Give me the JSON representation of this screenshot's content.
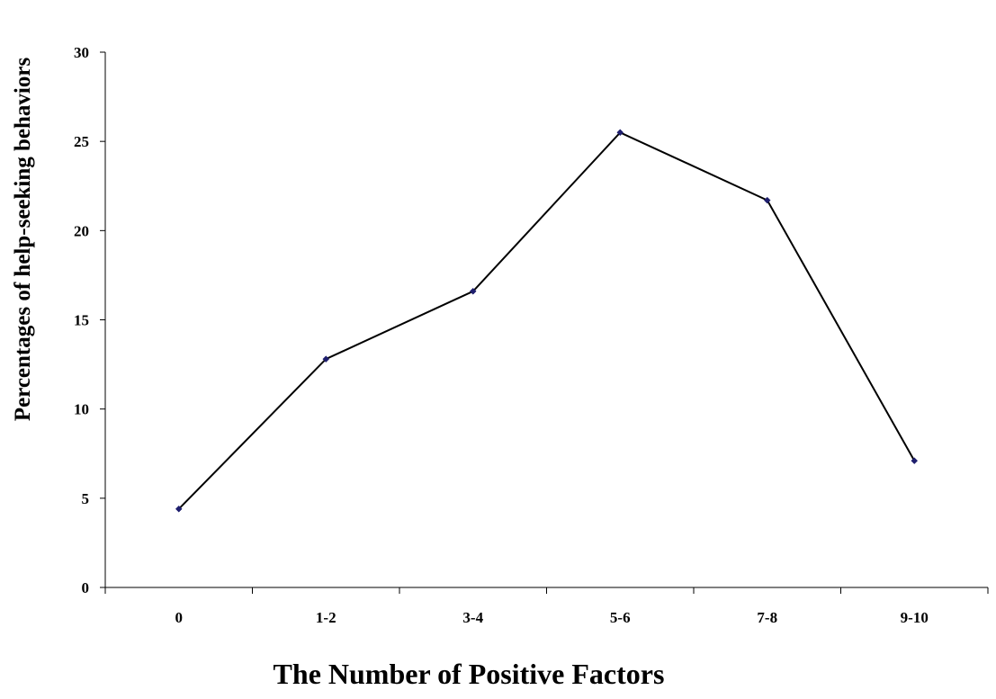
{
  "chart_data": {
    "type": "line",
    "title": "",
    "xlabel": "The Number of Positive Factors",
    "ylabel": "Percentages of help-seeking behaviors",
    "categories": [
      "0",
      "1-2",
      "3-4",
      "5-6",
      "7-8",
      "9-10"
    ],
    "series": [
      {
        "values": [
          4.4,
          12.8,
          16.6,
          25.5,
          21.7,
          7.1
        ]
      }
    ],
    "ylim": [
      0,
      30
    ],
    "yticks": [
      0,
      5,
      10,
      15,
      20,
      25,
      30
    ],
    "grid": false,
    "legend": "none",
    "colors": {
      "line": "#000000",
      "marker": "#1f1f6e",
      "axis": "#000000"
    }
  }
}
